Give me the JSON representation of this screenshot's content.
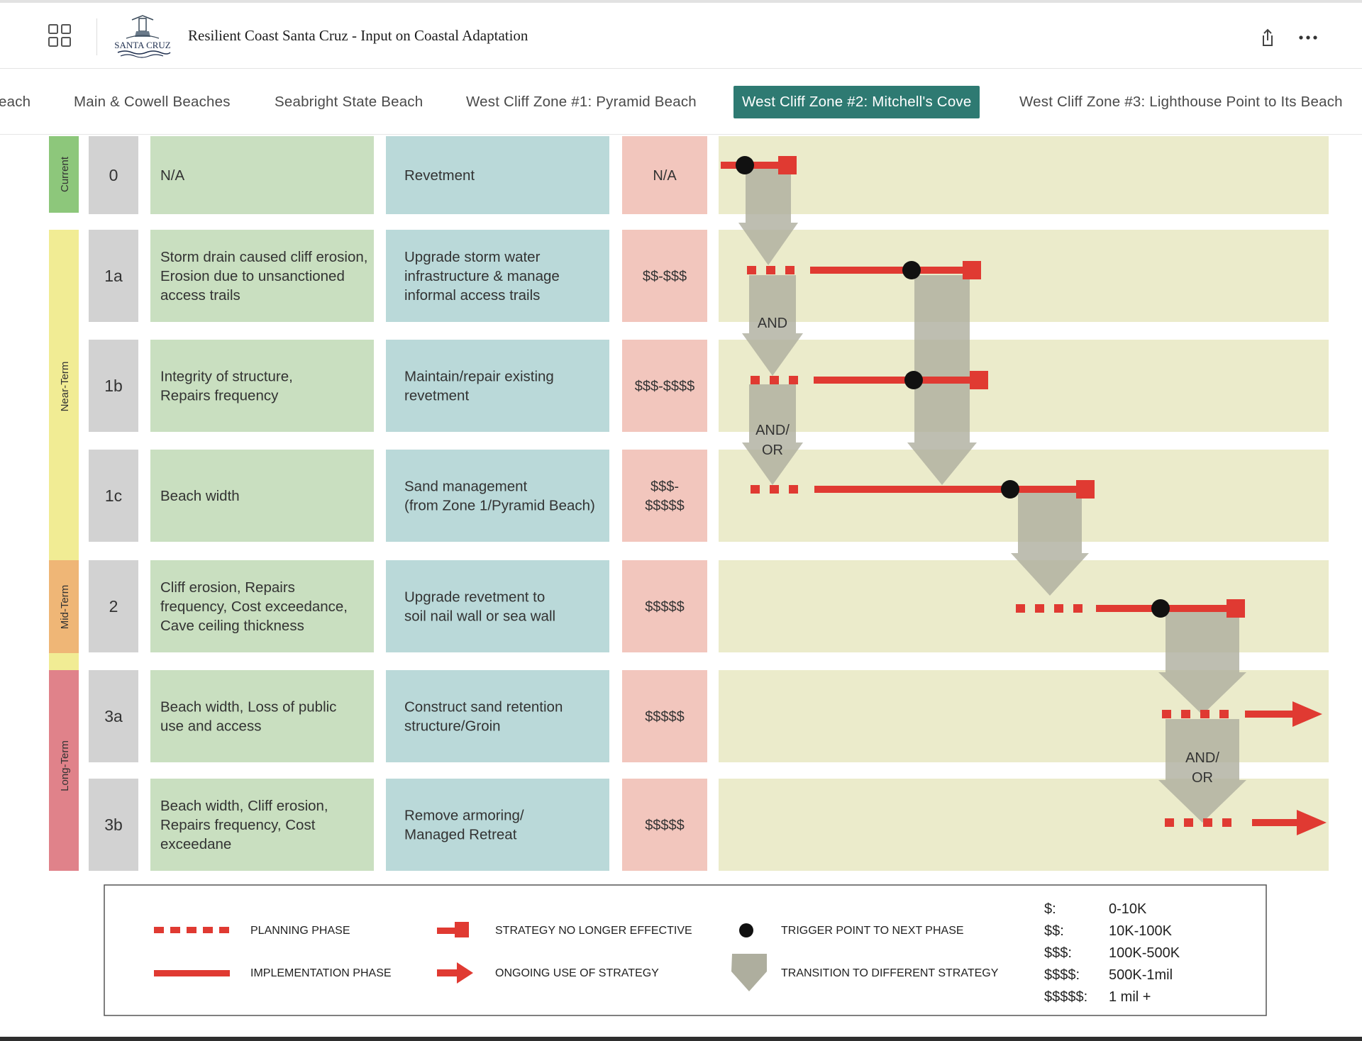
{
  "header": {
    "app_title": "Resilient Coast Santa Cruz - Input on Coastal Adaptation",
    "logo_text": "SANTA CRUZ",
    "grid_icon": "apps-grid-icon",
    "share_icon": "share-icon",
    "more_icon": "more-options-icon"
  },
  "tabs": [
    {
      "label": "each",
      "active": false
    },
    {
      "label": "Main & Cowell Beaches",
      "active": false
    },
    {
      "label": "Seabright State Beach",
      "active": false
    },
    {
      "label": "West Cliff Zone #1: Pyramid Beach",
      "active": false
    },
    {
      "label": "West Cliff Zone #2: Mitchell's Cove",
      "active": true
    },
    {
      "label": "West Cliff Zone #3: Lighthouse Point to Its Beach",
      "active": false
    }
  ],
  "phases": [
    {
      "label": "Current",
      "color": "#8dc77b"
    },
    {
      "label": "Near-Term",
      "color": "#f1ec94"
    },
    {
      "label": "Mid-Term",
      "color": "#efb676"
    },
    {
      "label": "Long-Term",
      "color": "#e0828a"
    }
  ],
  "rows": [
    {
      "id": "0",
      "triggers": [
        "N/A"
      ],
      "strategy": [
        "Revetment"
      ],
      "cost": [
        "N/A"
      ]
    },
    {
      "id": "1a",
      "triggers": [
        "Storm drain caused cliff erosion,",
        "Erosion due to unsanctioned",
        "access trails"
      ],
      "strategy": [
        "Upgrade storm water",
        "infrastructure & manage",
        "informal access trails"
      ],
      "cost": [
        "$$-$$$"
      ]
    },
    {
      "id": "1b",
      "triggers": [
        "Integrity of structure,",
        "Repairs frequency"
      ],
      "strategy": [
        "Maintain/repair existing",
        "revetment"
      ],
      "cost": [
        "$$$-$$$$"
      ]
    },
    {
      "id": "1c",
      "triggers": [
        "Beach width"
      ],
      "strategy": [
        "Sand management",
        "(from Zone 1/Pyramid Beach)"
      ],
      "cost": [
        "$$$-",
        "$$$$$"
      ]
    },
    {
      "id": "2",
      "triggers": [
        "Cliff erosion, Repairs",
        "frequency, Cost exceedance,",
        "Cave ceiling thickness"
      ],
      "strategy": [
        "Upgrade revetment to",
        "soil nail wall or sea wall"
      ],
      "cost": [
        "$$$$$"
      ]
    },
    {
      "id": "3a",
      "triggers": [
        "Beach width, Loss of public",
        "use and access"
      ],
      "strategy": [
        "Construct sand retention",
        "structure/Groin"
      ],
      "cost": [
        "$$$$$"
      ]
    },
    {
      "id": "3b",
      "triggers": [
        "Beach width, Cliff erosion,",
        "Repairs frequency, Cost",
        "exceedane"
      ],
      "strategy": [
        "Remove armoring/",
        "Managed Retreat"
      ],
      "cost": [
        "$$$$$"
      ]
    }
  ],
  "flow_labels": {
    "and": "AND",
    "andor_line1": "AND/",
    "andor_line2": "OR"
  },
  "legend": {
    "planning": "PLANNING PHASE",
    "implementation": "IMPLEMENTATION PHASE",
    "no_longer": "STRATEGY NO LONGER EFFECTIVE",
    "ongoing": "ONGOING USE OF STRATEGY",
    "trigger": "TRIGGER POINT TO NEXT PHASE",
    "transition": "TRANSITION TO DIFFERENT STRATEGY",
    "costs": [
      {
        "symbol": "$:",
        "range": "0-10K"
      },
      {
        "symbol": "$$:",
        "range": "10K-100K"
      },
      {
        "symbol": "$$$:",
        "range": "100K-500K"
      },
      {
        "symbol": "$$$$:",
        "range": "500K-1mil"
      },
      {
        "symbol": "$$$$$:",
        "range": "1 mil +"
      }
    ]
  },
  "colors": {
    "accent_tab": "#2e7a72",
    "trigger_cell": "#c9dfc0",
    "strategy_cell": "#bad9d9",
    "cost_cell": "#f2c6bd",
    "id_cell": "#d2d2d2",
    "pathway_bg": "#ebebcb",
    "line_red": "#e03a32",
    "transition_grey": "#aeae9e"
  }
}
